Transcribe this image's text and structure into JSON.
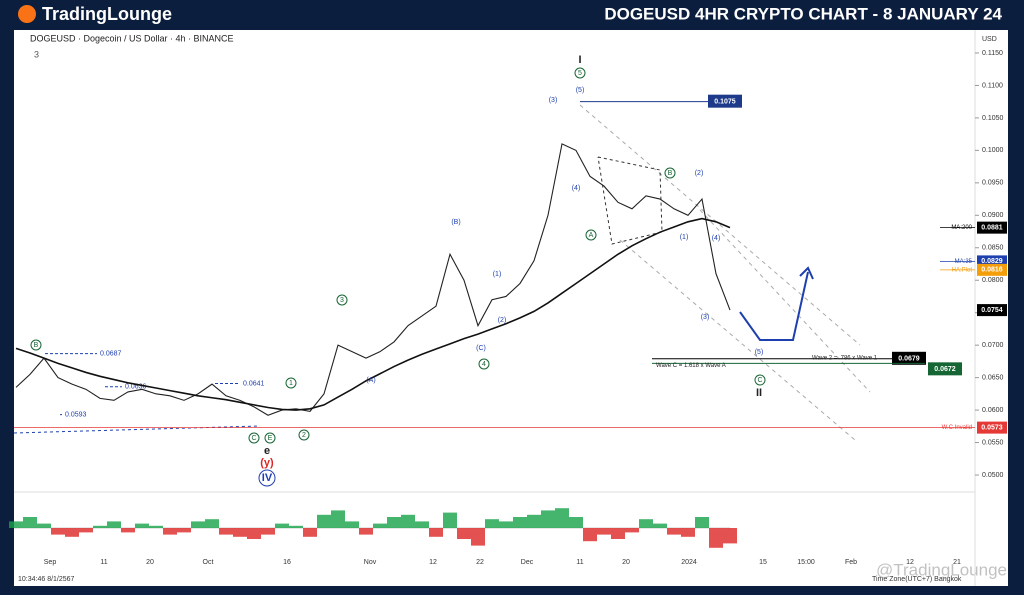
{
  "header": {
    "brand": "TradingLounge",
    "title": "DOGEUSD 4HR CRYPTO CHART - 8 JANUARY 24"
  },
  "chart_data": {
    "type": "line",
    "symbol": "DOGEUSD · Dogecoin / US Dollar · 4h · BINANCE",
    "indicator_count": "3",
    "currency": "USD",
    "ylim": [
      0.048,
      0.118
    ],
    "yticks": [
      {
        "value": 0.05,
        "label": "0.0500"
      },
      {
        "value": 0.055,
        "label": "0.0550"
      },
      {
        "value": 0.06,
        "label": "0.0600"
      },
      {
        "value": 0.065,
        "label": "0.0650"
      },
      {
        "value": 0.07,
        "label": "0.0700"
      },
      {
        "value": 0.075,
        "label": "0.0750"
      },
      {
        "value": 0.08,
        "label": "0.0800"
      },
      {
        "value": 0.085,
        "label": "0.0850"
      },
      {
        "value": 0.09,
        "label": "0.0900"
      },
      {
        "value": 0.095,
        "label": "0.0950"
      },
      {
        "value": 0.1,
        "label": "0.1000"
      },
      {
        "value": 0.105,
        "label": "0.1050"
      },
      {
        "value": 0.11,
        "label": "0.1100"
      },
      {
        "value": 0.115,
        "label": "0.1150"
      }
    ],
    "x_labels": [
      "Sep",
      "11",
      "20",
      "Oct",
      "16",
      "Nov",
      "12",
      "22",
      "Dec",
      "11",
      "20",
      "2024",
      "15",
      "15:00",
      "Feb",
      "12",
      "21"
    ],
    "series": [
      {
        "color": "#222222",
        "values": [
          0.0635,
          0.0655,
          0.068,
          0.065,
          0.064,
          0.0632,
          0.0618,
          0.0615,
          0.0628,
          0.0632,
          0.0625,
          0.0622,
          0.0615,
          0.0625,
          0.064,
          0.0622,
          0.0615,
          0.0605,
          0.0592,
          0.06,
          0.0602,
          0.0598,
          0.0625,
          0.07,
          0.069,
          0.068,
          0.069,
          0.0705,
          0.073,
          0.0745,
          0.076,
          0.084,
          0.08,
          0.073,
          0.077,
          0.0775,
          0.0795,
          0.083,
          0.09,
          0.101,
          0.1,
          0.096,
          0.0945,
          0.092,
          0.091,
          0.093,
          0.0925,
          0.091,
          0.09,
          0.0925,
          0.081,
          0.0754
        ]
      },
      {
        "color": "#111111",
        "values": [
          0.0695,
          0.0688,
          0.068,
          0.0672,
          0.0665,
          0.0658,
          0.0652,
          0.0647,
          0.0642,
          0.0638,
          0.0634,
          0.063,
          0.0626,
          0.0622,
          0.0619,
          0.0616,
          0.0612,
          0.0608,
          0.0604,
          0.0601,
          0.06,
          0.0602,
          0.0608,
          0.062,
          0.0632,
          0.0645,
          0.0656,
          0.0667,
          0.0677,
          0.0686,
          0.0694,
          0.0702,
          0.071,
          0.0717,
          0.0725,
          0.0733,
          0.0742,
          0.0752,
          0.0765,
          0.078,
          0.0795,
          0.081,
          0.0825,
          0.084,
          0.0853,
          0.0864,
          0.0874,
          0.0882,
          0.089,
          0.0895,
          0.089,
          0.0881
        ]
      }
    ],
    "oscillator": {
      "ylim": [
        -1,
        1
      ],
      "values": [
        0.3,
        0.5,
        0.2,
        -0.3,
        -0.4,
        -0.2,
        0.1,
        0.3,
        -0.2,
        0.2,
        0.1,
        -0.3,
        -0.2,
        0.3,
        0.4,
        -0.3,
        -0.4,
        -0.5,
        -0.3,
        0.2,
        0.1,
        -0.4,
        0.6,
        0.8,
        0.3,
        -0.3,
        0.2,
        0.5,
        0.6,
        0.3,
        -0.4,
        0.7,
        -0.5,
        -0.8,
        0.4,
        0.3,
        0.5,
        0.6,
        0.8,
        0.9,
        0.5,
        -0.6,
        -0.3,
        -0.5,
        -0.2,
        0.4,
        0.2,
        -0.3,
        -0.4,
        0.5,
        -0.9,
        -0.7
      ]
    },
    "price_tags": [
      {
        "label": "MA:200",
        "value": 0.0881,
        "color": "#000000"
      },
      {
        "label": "MA:35",
        "value": 0.0829,
        "color": "#1e40af"
      },
      {
        "label": "HA:Plot",
        "value": 0.0816,
        "color": "#f59e0b"
      },
      {
        "value": 0.0754,
        "color": "#000000"
      },
      {
        "label": "W.C.Invalid",
        "value": 0.0573,
        "color": "#e53935"
      }
    ],
    "levels": [
      {
        "value": 0.1075,
        "color": "#1e3a8a"
      },
      {
        "value": 0.0679,
        "color": "#000000",
        "text": "Wave 2 = .786 x Wave 1"
      },
      {
        "value": 0.0672,
        "color": "#166534",
        "text": "Wave C = 1.618 x Wave A"
      }
    ],
    "marks": [
      {
        "value": 0.0687
      },
      {
        "value": 0.0641
      },
      {
        "value": 0.0636
      },
      {
        "value": 0.0593
      }
    ],
    "wave_labels": [
      "I",
      "5",
      "(5)",
      "(3)",
      "(4)",
      "A",
      "B",
      "(2)",
      "(1)",
      "(4)",
      "(3)",
      "(5)",
      "C",
      "II",
      "(B)",
      "(1)",
      "(2)",
      "(C)",
      "4",
      "3",
      "(A)",
      "1",
      "2",
      "B",
      "C",
      "E",
      "e",
      "(y)",
      "IV"
    ],
    "timestamp": "10:34:46 8/1/2567",
    "timezone": "Time Zone(UTC+7) Bangkok",
    "watermark": "@TradingLounge"
  }
}
